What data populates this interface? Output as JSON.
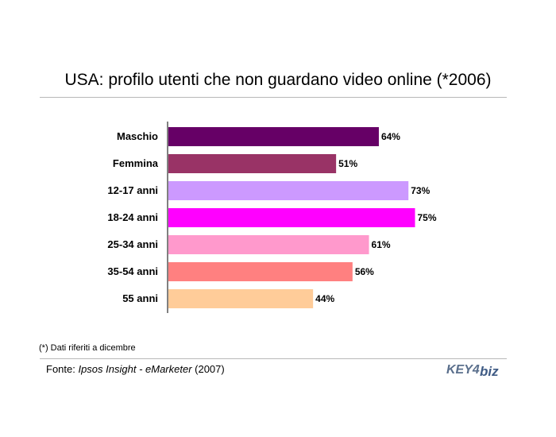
{
  "title": "USA: profilo utenti che non guardano video online (*2006)",
  "footnote": "(*) Dati riferiti a dicembre",
  "source": {
    "prefix": "Fonte: ",
    "name": "Ipsos Insight - eMarketer",
    "suffix": " (2007)"
  },
  "logo": {
    "part1": "KEY4",
    "part2": "biz"
  },
  "chart_data": {
    "type": "bar",
    "orientation": "horizontal",
    "categories": [
      "Maschio",
      "Femmina",
      "12-17 anni",
      "18-24 anni",
      "25-34 anni",
      "35-54 anni",
      "55 anni"
    ],
    "values": [
      64,
      51,
      73,
      75,
      61,
      56,
      44
    ],
    "value_labels": [
      "64%",
      "51%",
      "73%",
      "75%",
      "61%",
      "56%",
      "44%"
    ],
    "colors": [
      "#660066",
      "#993366",
      "#cc99ff",
      "#ff00ff",
      "#ff99cc",
      "#ff8080",
      "#ffcc99"
    ],
    "grid": false,
    "legend": "none"
  }
}
